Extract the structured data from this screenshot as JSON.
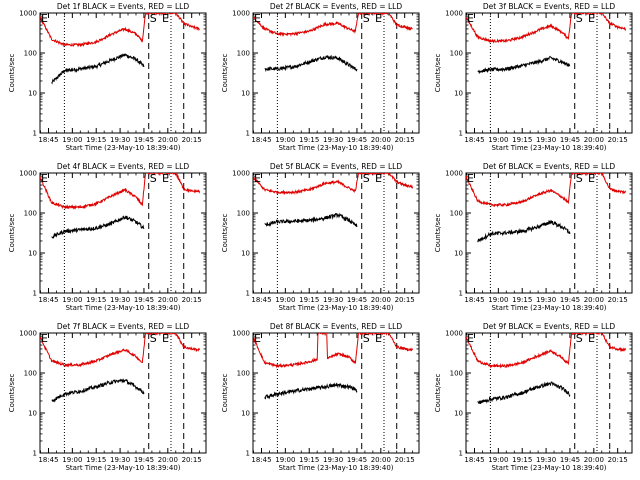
{
  "figure": {
    "ylabel": "Counts/sec",
    "xlabel": "Start Time (23-May-10 18:39:40)",
    "x_tick_labels": [
      "18:45",
      "19:00",
      "19:15",
      "19:30",
      "19:45",
      "20:00",
      "20:15"
    ],
    "y_tick_labels": [
      "1",
      "10",
      "100",
      "1000"
    ],
    "colors": {
      "events": "#000000",
      "lld": "#e00000",
      "frame": "#000000"
    },
    "markers": {
      "eclipse_start": "E",
      "saa": "S",
      "eclipse_end": "E"
    }
  },
  "chart_data": [
    {
      "type": "line",
      "title": "Det 1f BLACK = Events, RED = LLD",
      "xlim": [
        "18:39:40",
        "20:24"
      ],
      "ylim": [
        1,
        1000
      ],
      "yscale": "log",
      "series": [
        {
          "name": "Events",
          "color": "#000000",
          "x": [
            "18:47",
            "18:55",
            "19:05",
            "19:15",
            "19:25",
            "19:33",
            "19:40",
            "19:44",
            "19:45"
          ],
          "values": [
            18,
            36,
            40,
            46,
            68,
            90,
            70,
            50,
            45
          ]
        },
        {
          "name": "LLD",
          "color": "#e00000",
          "x": [
            "18:39:40",
            "18:47",
            "18:55",
            "19:05",
            "19:15",
            "19:25",
            "19:33",
            "19:40",
            "19:44",
            "19:46",
            "20:05",
            "20:10",
            "20:15",
            "20:20"
          ],
          "values": [
            800,
            220,
            160,
            160,
            190,
            300,
            400,
            300,
            200,
            1000,
            1000,
            550,
            450,
            400
          ]
        }
      ],
      "vlines_dotted": [
        "18:55",
        "20:02"
      ],
      "vlines_dashed": [
        "19:48",
        "20:10"
      ]
    },
    {
      "type": "line",
      "title": "Det 2f BLACK = Events, RED = LLD",
      "xlim": [
        "18:39:40",
        "20:24"
      ],
      "ylim": [
        1,
        1000
      ],
      "yscale": "log",
      "series": [
        {
          "name": "Events",
          "color": "#000000",
          "x": [
            "18:47",
            "18:55",
            "19:05",
            "19:15",
            "19:25",
            "19:33",
            "19:40",
            "19:44",
            "19:45"
          ],
          "values": [
            40,
            40,
            45,
            60,
            80,
            75,
            50,
            40,
            40
          ]
        },
        {
          "name": "LLD",
          "color": "#e00000",
          "x": [
            "18:39:40",
            "18:47",
            "18:55",
            "19:05",
            "19:15",
            "19:25",
            "19:33",
            "19:40",
            "19:44",
            "19:46",
            "20:05",
            "20:10",
            "20:15",
            "20:20"
          ],
          "values": [
            800,
            400,
            300,
            300,
            350,
            520,
            550,
            400,
            350,
            1000,
            1000,
            500,
            450,
            400
          ]
        }
      ],
      "vlines_dotted": [
        "18:55",
        "20:02"
      ],
      "vlines_dashed": [
        "19:48",
        "20:10"
      ]
    },
    {
      "type": "line",
      "title": "Det 3f BLACK = Events, RED = LLD",
      "xlim": [
        "18:39:40",
        "20:24"
      ],
      "ylim": [
        1,
        1000
      ],
      "yscale": "log",
      "series": [
        {
          "name": "Events",
          "color": "#000000",
          "x": [
            "18:47",
            "18:55",
            "19:05",
            "19:15",
            "19:25",
            "19:33",
            "19:40",
            "19:44",
            "19:45"
          ],
          "values": [
            35,
            38,
            40,
            48,
            60,
            75,
            60,
            50,
            50
          ]
        },
        {
          "name": "LLD",
          "color": "#e00000",
          "x": [
            "18:39:40",
            "18:47",
            "18:55",
            "19:05",
            "19:15",
            "19:25",
            "19:33",
            "19:40",
            "19:44",
            "19:46",
            "20:05",
            "20:10",
            "20:15",
            "20:20"
          ],
          "values": [
            800,
            250,
            200,
            200,
            250,
            370,
            480,
            330,
            230,
            1000,
            1000,
            550,
            450,
            400
          ]
        }
      ],
      "vlines_dotted": [
        "18:55",
        "20:02"
      ],
      "vlines_dashed": [
        "19:48",
        "20:10"
      ]
    },
    {
      "type": "line",
      "title": "Det 4f BLACK = Events, RED = LLD",
      "xlim": [
        "18:39:40",
        "20:24"
      ],
      "ylim": [
        1,
        1000
      ],
      "yscale": "log",
      "series": [
        {
          "name": "Events",
          "color": "#000000",
          "x": [
            "18:47",
            "18:55",
            "19:05",
            "19:15",
            "19:25",
            "19:33",
            "19:40",
            "19:44",
            "19:45"
          ],
          "values": [
            25,
            35,
            38,
            42,
            55,
            80,
            60,
            45,
            40
          ]
        },
        {
          "name": "LLD",
          "color": "#e00000",
          "x": [
            "18:39:40",
            "18:47",
            "18:55",
            "19:05",
            "19:15",
            "19:25",
            "19:33",
            "19:40",
            "19:44",
            "19:46",
            "20:05",
            "20:10",
            "20:15",
            "20:20"
          ],
          "values": [
            800,
            180,
            140,
            140,
            170,
            270,
            380,
            250,
            160,
            1000,
            1000,
            400,
            350,
            350
          ]
        }
      ],
      "vlines_dotted": [
        "18:55",
        "20:02"
      ],
      "vlines_dashed": [
        "19:48",
        "20:10"
      ]
    },
    {
      "type": "line",
      "title": "Det 5f BLACK = Events, RED = LLD",
      "xlim": [
        "18:39:40",
        "20:24"
      ],
      "ylim": [
        1,
        1000
      ],
      "yscale": "log",
      "series": [
        {
          "name": "Events",
          "color": "#000000",
          "x": [
            "18:47",
            "18:55",
            "19:05",
            "19:15",
            "19:25",
            "19:33",
            "19:40",
            "19:44",
            "19:45"
          ],
          "values": [
            50,
            60,
            62,
            65,
            75,
            90,
            65,
            50,
            45
          ]
        },
        {
          "name": "LLD",
          "color": "#e00000",
          "x": [
            "18:39:40",
            "18:47",
            "18:55",
            "19:05",
            "19:15",
            "19:25",
            "19:33",
            "19:40",
            "19:44",
            "19:46",
            "20:05",
            "20:10",
            "20:15",
            "20:20"
          ],
          "values": [
            800,
            380,
            330,
            330,
            380,
            550,
            600,
            420,
            350,
            1000,
            1000,
            600,
            500,
            450
          ]
        }
      ],
      "vlines_dotted": [
        "18:55",
        "20:02"
      ],
      "vlines_dashed": [
        "19:48",
        "20:10"
      ]
    },
    {
      "type": "line",
      "title": "Det 6f BLACK = Events, RED = LLD",
      "xlim": [
        "18:39:40",
        "20:24"
      ],
      "ylim": [
        1,
        1000
      ],
      "yscale": "log",
      "series": [
        {
          "name": "Events",
          "color": "#000000",
          "x": [
            "18:47",
            "18:55",
            "19:05",
            "19:15",
            "19:25",
            "19:33",
            "19:40",
            "19:44",
            "19:45"
          ],
          "values": [
            20,
            30,
            32,
            35,
            45,
            60,
            45,
            35,
            30
          ]
        },
        {
          "name": "LLD",
          "color": "#e00000",
          "x": [
            "18:39:40",
            "18:47",
            "18:55",
            "19:05",
            "19:15",
            "19:25",
            "19:33",
            "19:40",
            "19:44",
            "19:46",
            "20:05",
            "20:10",
            "20:15",
            "20:20"
          ],
          "values": [
            800,
            200,
            160,
            160,
            190,
            290,
            370,
            250,
            180,
            1000,
            1000,
            400,
            350,
            330
          ]
        }
      ],
      "vlines_dotted": [
        "18:55",
        "20:02"
      ],
      "vlines_dashed": [
        "19:48",
        "20:10"
      ]
    },
    {
      "type": "line",
      "title": "Det 7f BLACK = Events, RED = LLD",
      "xlim": [
        "18:39:40",
        "20:24"
      ],
      "ylim": [
        1,
        1000
      ],
      "yscale": "log",
      "series": [
        {
          "name": "Events",
          "color": "#000000",
          "x": [
            "18:47",
            "18:55",
            "19:05",
            "19:15",
            "19:25",
            "19:33",
            "19:40",
            "19:44",
            "19:45"
          ],
          "values": [
            20,
            30,
            35,
            45,
            60,
            65,
            45,
            35,
            30
          ]
        },
        {
          "name": "LLD",
          "color": "#e00000",
          "x": [
            "18:39:40",
            "18:47",
            "18:55",
            "19:05",
            "19:15",
            "19:25",
            "19:33",
            "19:40",
            "19:44",
            "19:46",
            "20:05",
            "20:10",
            "20:15",
            "20:20"
          ],
          "values": [
            800,
            200,
            160,
            160,
            200,
            300,
            380,
            260,
            180,
            1000,
            1000,
            450,
            400,
            380
          ]
        }
      ],
      "vlines_dotted": [
        "18:55",
        "20:02"
      ],
      "vlines_dashed": [
        "19:48",
        "20:10"
      ]
    },
    {
      "type": "line",
      "title": "Det 8f BLACK = Events, RED = LLD",
      "xlim": [
        "18:39:40",
        "20:24"
      ],
      "ylim": [
        1,
        1000
      ],
      "yscale": "log",
      "series": [
        {
          "name": "Events",
          "color": "#000000",
          "x": [
            "18:47",
            "18:55",
            "19:05",
            "19:15",
            "19:25",
            "19:33",
            "19:40",
            "19:44",
            "19:45"
          ],
          "values": [
            25,
            30,
            35,
            40,
            45,
            50,
            45,
            40,
            35
          ]
        },
        {
          "name": "LLD",
          "color": "#e00000",
          "x": [
            "18:39:40",
            "18:47",
            "18:55",
            "19:05",
            "19:15",
            "19:20",
            "19:20:30",
            "19:26",
            "19:26:30",
            "19:33",
            "19:40",
            "19:44",
            "19:46",
            "20:05",
            "20:10",
            "20:15",
            "20:20"
          ],
          "values": [
            800,
            180,
            150,
            160,
            190,
            220,
            1000,
            1000,
            230,
            300,
            250,
            180,
            1000,
            1000,
            450,
            400,
            380
          ]
        }
      ],
      "vlines_dotted": [
        "18:55",
        "20:02"
      ],
      "vlines_dashed": [
        "19:48",
        "20:10"
      ]
    },
    {
      "type": "line",
      "title": "Det 9f BLACK = Events, RED = LLD",
      "xlim": [
        "18:39:40",
        "20:24"
      ],
      "ylim": [
        1,
        1000
      ],
      "yscale": "log",
      "series": [
        {
          "name": "Events",
          "color": "#000000",
          "x": [
            "18:47",
            "18:55",
            "19:05",
            "19:15",
            "19:25",
            "19:33",
            "19:40",
            "19:44",
            "19:45"
          ],
          "values": [
            18,
            22,
            25,
            32,
            45,
            55,
            42,
            32,
            28
          ]
        },
        {
          "name": "LLD",
          "color": "#e00000",
          "x": [
            "18:39:40",
            "18:47",
            "18:55",
            "19:05",
            "19:15",
            "19:25",
            "19:33",
            "19:40",
            "19:44",
            "19:46",
            "20:05",
            "20:10",
            "20:15",
            "20:20"
          ],
          "values": [
            800,
            200,
            150,
            150,
            180,
            270,
            360,
            240,
            170,
            1000,
            1000,
            450,
            400,
            380
          ]
        }
      ],
      "vlines_dotted": [
        "18:55",
        "20:02"
      ],
      "vlines_dashed": [
        "19:48",
        "20:10"
      ]
    }
  ]
}
